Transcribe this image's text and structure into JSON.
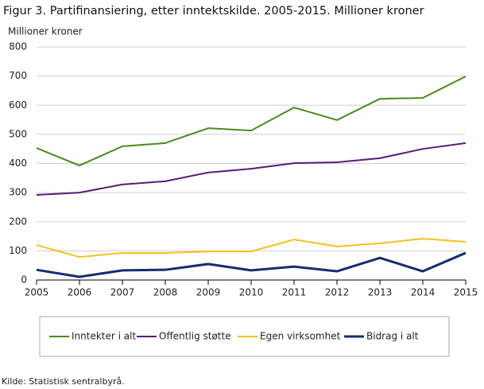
{
  "chart_data": {
    "type": "line",
    "title": "Figur 3. Partifinansiering, etter inntektskilde. 2005-2015. Millioner kroner",
    "y_label": "Millioner  kroner",
    "source": "Kilde: Statistisk sentralbyrå.",
    "x": [
      2005,
      2006,
      2007,
      2008,
      2009,
      2010,
      2011,
      2012,
      2013,
      2014,
      2015
    ],
    "xlim": [
      2005,
      2015
    ],
    "xticks": [
      2005,
      2006,
      2007,
      2008,
      2009,
      2010,
      2011,
      2012,
      2013,
      2014,
      2015
    ],
    "ylim": [
      0,
      800
    ],
    "yticks": [
      0,
      100,
      200,
      300,
      400,
      500,
      600,
      700,
      800
    ],
    "grid": true,
    "legend": "bottom",
    "series": [
      {
        "name": "Inntekter i alt",
        "color": "#4b8a1e",
        "values": [
          453,
          393,
          459,
          470,
          521,
          513,
          592,
          549,
          622,
          625,
          699
        ]
      },
      {
        "name": "Offentlig støtte",
        "color": "#5b1a78",
        "values": [
          292,
          300,
          328,
          339,
          369,
          382,
          401,
          404,
          418,
          450,
          470
        ]
      },
      {
        "name": "Egen virksomhet",
        "color": "#f5c11a",
        "values": [
          120,
          79,
          93,
          93,
          98,
          98,
          139,
          115,
          126,
          142,
          131
        ]
      },
      {
        "name": "Bidrag i alt",
        "color": "#142e6e",
        "values": [
          35,
          11,
          33,
          35,
          55,
          33,
          46,
          30,
          76,
          30,
          93
        ]
      }
    ]
  }
}
